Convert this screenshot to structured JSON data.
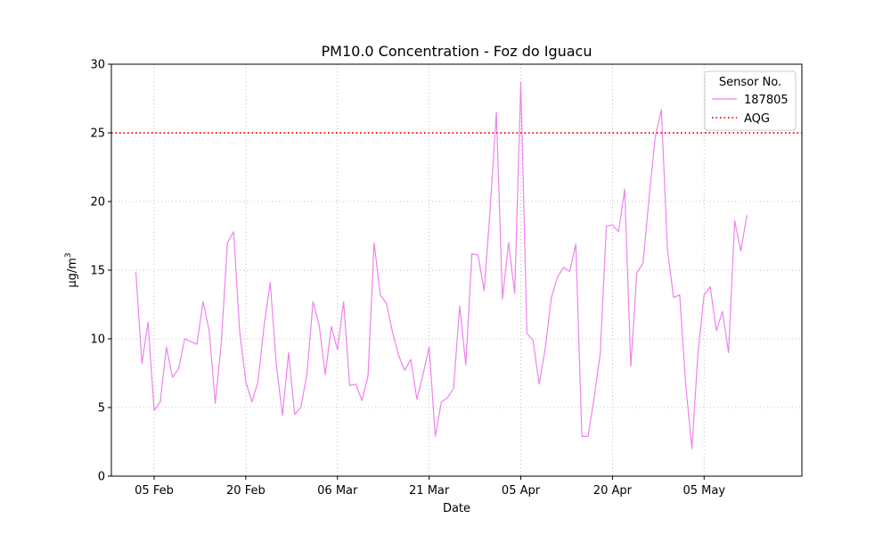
{
  "chart_data": {
    "type": "line",
    "title": "PM10.0 Concentration - Foz do Iguacu",
    "xlabel": "Date",
    "ylabel_base": "µg/m",
    "ylabel_sup": "3",
    "ylim": [
      0,
      30
    ],
    "xlim": [
      "2024-01-29",
      "2024-05-21"
    ],
    "grid": true,
    "grid_style": "dotted",
    "legend": {
      "title": "Sensor No.",
      "placement": "top-right",
      "entries": [
        "187805",
        "AQG"
      ]
    },
    "yticks": [
      0,
      5,
      10,
      15,
      20,
      25,
      30
    ],
    "xticks": [
      {
        "date": "2024-02-05",
        "label": "05 Feb"
      },
      {
        "date": "2024-02-20",
        "label": "20 Feb"
      },
      {
        "date": "2024-03-06",
        "label": "06 Mar"
      },
      {
        "date": "2024-03-21",
        "label": "21 Mar"
      },
      {
        "date": "2024-04-05",
        "label": "05 Apr"
      },
      {
        "date": "2024-04-20",
        "label": "20 Apr"
      },
      {
        "date": "2024-05-05",
        "label": "05 May"
      }
    ],
    "series": [
      {
        "name": "187805",
        "color": "#ee82ee",
        "x": [
          "2024-02-02",
          "2024-02-03",
          "2024-02-04",
          "2024-02-05",
          "2024-02-06",
          "2024-02-07",
          "2024-02-08",
          "2024-02-09",
          "2024-02-10",
          "2024-02-11",
          "2024-02-12",
          "2024-02-13",
          "2024-02-14",
          "2024-02-15",
          "2024-02-16",
          "2024-02-17",
          "2024-02-18",
          "2024-02-19",
          "2024-02-20",
          "2024-02-21",
          "2024-02-22",
          "2024-02-23",
          "2024-02-24",
          "2024-02-25",
          "2024-02-26",
          "2024-02-27",
          "2024-02-28",
          "2024-02-29",
          "2024-03-01",
          "2024-03-02",
          "2024-03-03",
          "2024-03-04",
          "2024-03-05",
          "2024-03-06",
          "2024-03-07",
          "2024-03-08",
          "2024-03-09",
          "2024-03-10",
          "2024-03-11",
          "2024-03-12",
          "2024-03-13",
          "2024-03-14",
          "2024-03-15",
          "2024-03-16",
          "2024-03-17",
          "2024-03-18",
          "2024-03-19",
          "2024-03-20",
          "2024-03-21",
          "2024-03-22",
          "2024-03-23",
          "2024-03-24",
          "2024-03-25",
          "2024-03-26",
          "2024-03-27",
          "2024-03-28",
          "2024-03-29",
          "2024-03-30",
          "2024-03-31",
          "2024-04-01",
          "2024-04-02",
          "2024-04-03",
          "2024-04-04",
          "2024-04-05",
          "2024-04-06",
          "2024-04-07",
          "2024-04-08",
          "2024-04-09",
          "2024-04-10",
          "2024-04-11",
          "2024-04-12",
          "2024-04-13",
          "2024-04-14",
          "2024-04-15",
          "2024-04-16",
          "2024-04-17",
          "2024-04-18",
          "2024-04-19",
          "2024-04-20",
          "2024-04-21",
          "2024-04-22",
          "2024-04-23",
          "2024-04-24",
          "2024-04-25",
          "2024-04-26",
          "2024-04-27",
          "2024-04-28",
          "2024-04-29",
          "2024-04-30",
          "2024-05-01",
          "2024-05-02",
          "2024-05-03",
          "2024-05-04",
          "2024-05-05",
          "2024-05-06",
          "2024-05-07",
          "2024-05-08",
          "2024-05-09",
          "2024-05-10",
          "2024-05-11",
          "2024-05-12"
        ],
        "values": [
          14.9,
          8.2,
          11.2,
          4.8,
          5.4,
          9.4,
          7.2,
          7.8,
          10.0,
          9.8,
          9.6,
          12.7,
          10.6,
          5.3,
          9.8,
          17.0,
          17.8,
          10.5,
          6.9,
          5.4,
          6.9,
          11.0,
          14.1,
          8.1,
          4.4,
          9.0,
          4.5,
          5.0,
          7.4,
          12.7,
          11.0,
          7.4,
          10.9,
          9.2,
          12.7,
          6.6,
          6.7,
          5.5,
          7.3,
          17.0,
          13.2,
          12.6,
          10.5,
          8.8,
          7.7,
          8.5,
          5.6,
          7.4,
          9.4,
          2.9,
          5.4,
          5.7,
          6.4,
          12.4,
          8.1,
          16.2,
          16.1,
          13.5,
          19.5,
          26.5,
          12.9,
          17.0,
          13.3,
          28.7,
          10.4,
          9.9,
          6.7,
          9.3,
          13.0,
          14.5,
          15.2,
          14.9,
          16.9,
          2.9,
          2.9,
          5.7,
          8.9,
          18.2,
          18.3,
          17.8,
          20.9,
          8.0,
          14.8,
          15.5,
          20.3,
          24.7,
          26.7,
          16.5,
          13.0,
          13.2,
          6.6,
          2.0,
          9.0,
          13.2,
          13.8,
          10.6,
          12.0,
          9.0,
          18.6,
          16.4,
          19.0
        ]
      },
      {
        "name": "AQG",
        "color": "#ff0000",
        "value": 25
      }
    ]
  }
}
